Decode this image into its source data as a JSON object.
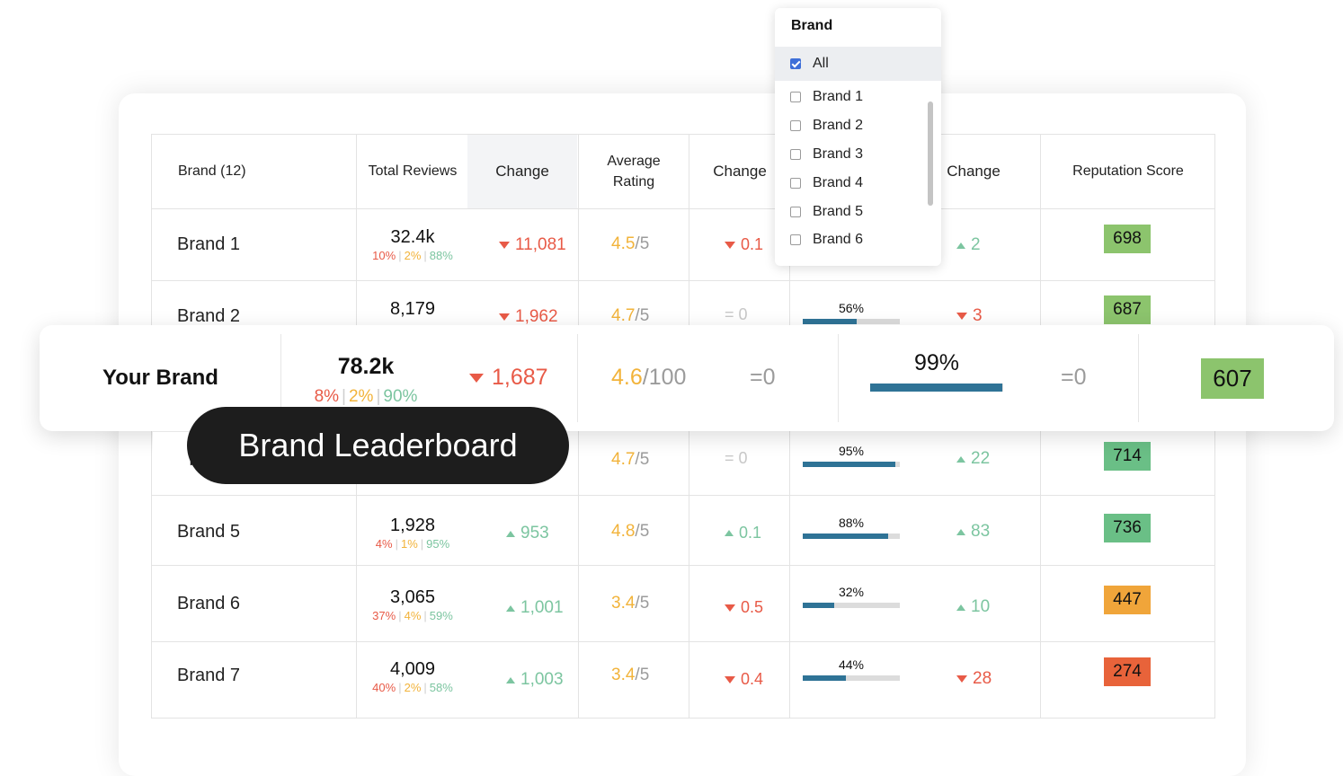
{
  "table": {
    "headers": {
      "brand": "Brand (12)",
      "total_reviews": "Total Reviews",
      "change": "Change",
      "avg_rating_line1": "Average",
      "avg_rating_line2": "Rating",
      "change2": "Change",
      "change3": "Change",
      "reputation": "Reputation Score"
    },
    "rows": [
      {
        "name": "Brand 1",
        "total": "32.4k",
        "neg": "10%",
        "neu": "2%",
        "pos": "88%",
        "change": "11,081",
        "change_dir": "down",
        "rating": "4.5",
        "rating_den": "/5",
        "rchange": "0.1",
        "rchange_dir": "down",
        "pct": "",
        "pct_value": null,
        "pchange": "2",
        "pchange_dir": "up",
        "score": "698",
        "score_color": "#8cc46d"
      },
      {
        "name": "Brand 2",
        "total": "8,179",
        "neg": "",
        "neu": "",
        "pos": "",
        "change": "1,962",
        "change_dir": "down",
        "rating": "4.7",
        "rating_den": "/5",
        "rchange": "= 0",
        "rchange_dir": "eq",
        "pct": "56%",
        "pct_value": 56,
        "pchange": "3",
        "pchange_dir": "down",
        "score": "687",
        "score_color": "#8cc46d"
      },
      {
        "name": "Br",
        "total": "",
        "neg": "",
        "neu": "",
        "pos": "",
        "change": "",
        "change_dir": "",
        "rating": "4.7",
        "rating_den": "/5",
        "rchange": "= 0",
        "rchange_dir": "eq",
        "pct": "95%",
        "pct_value": 95,
        "pchange": "22",
        "pchange_dir": "up",
        "score": "714",
        "score_color": "#6abf86"
      },
      {
        "name": "Brand 5",
        "total": "1,928",
        "neg": "4%",
        "neu": "1%",
        "pos": "95%",
        "change": "953",
        "change_dir": "up",
        "rating": "4.8",
        "rating_den": "/5",
        "rchange": "0.1",
        "rchange_dir": "up",
        "pct": "88%",
        "pct_value": 88,
        "pchange": "83",
        "pchange_dir": "up",
        "score": "736",
        "score_color": "#6abf86"
      },
      {
        "name": "Brand 6",
        "total": "3,065",
        "neg": "37%",
        "neu": "4%",
        "pos": "59%",
        "change": "1,001",
        "change_dir": "up",
        "rating": "3.4",
        "rating_den": "/5",
        "rchange": "0.5",
        "rchange_dir": "down",
        "pct": "32%",
        "pct_value": 32,
        "pchange": "10",
        "pchange_dir": "up",
        "score": "447",
        "score_color": "#f0a53a"
      },
      {
        "name": "Brand 7",
        "total": "4,009",
        "neg": "40%",
        "neu": "2%",
        "pos": "58%",
        "change": "1,003",
        "change_dir": "up",
        "rating": "3.4",
        "rating_den": "/5",
        "rchange": "0.4",
        "rchange_dir": "down",
        "pct": "44%",
        "pct_value": 44,
        "pchange": "28",
        "pchange_dir": "down",
        "score": "274",
        "score_color": "#e8633a"
      }
    ]
  },
  "dropdown": {
    "title": "Brand",
    "all_label": "All",
    "items": [
      "Brand 1",
      "Brand 2",
      "Brand 3",
      "Brand 4",
      "Brand 5",
      "Brand 6"
    ]
  },
  "your_brand": {
    "name": "Your Brand",
    "total": "78.2k",
    "neg": "8%",
    "neu": "2%",
    "pos": "90%",
    "change": "1,687",
    "rating": "4.6",
    "rating_den": "/100",
    "rchange": "=0",
    "pct": "99%",
    "pct_value": 99,
    "pchange": "=0",
    "score": "607",
    "score_color": "#8cc46d"
  },
  "badge": {
    "label": "Brand Leaderboard"
  },
  "colors": {
    "negative": "#e85a47",
    "neutral": "#f2b33a",
    "positive": "#7cc5a0",
    "bar": "#2f7396"
  }
}
